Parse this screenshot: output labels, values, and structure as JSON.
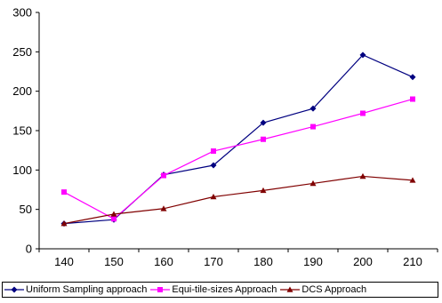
{
  "chart_data": {
    "type": "line",
    "x": [
      140,
      150,
      160,
      170,
      180,
      190,
      200,
      210
    ],
    "ylim": [
      0,
      300
    ],
    "yticks": [
      0,
      50,
      100,
      150,
      200,
      250,
      300
    ],
    "grid": false,
    "legend_position": "bottom",
    "series": [
      {
        "name": "Uniform Sampling approach",
        "color": "#000080",
        "marker": "diamond",
        "values": [
          32,
          37,
          94,
          106,
          160,
          178,
          246,
          218
        ]
      },
      {
        "name": "Equi-tile-sizes Approach",
        "color": "#ff00ff",
        "marker": "square",
        "values": [
          72,
          38,
          93,
          124,
          139,
          155,
          172,
          190
        ]
      },
      {
        "name": "DCS Approach",
        "color": "#800000",
        "marker": "triangle",
        "values": [
          32,
          44,
          51,
          66,
          74,
          83,
          92,
          87
        ]
      }
    ]
  }
}
